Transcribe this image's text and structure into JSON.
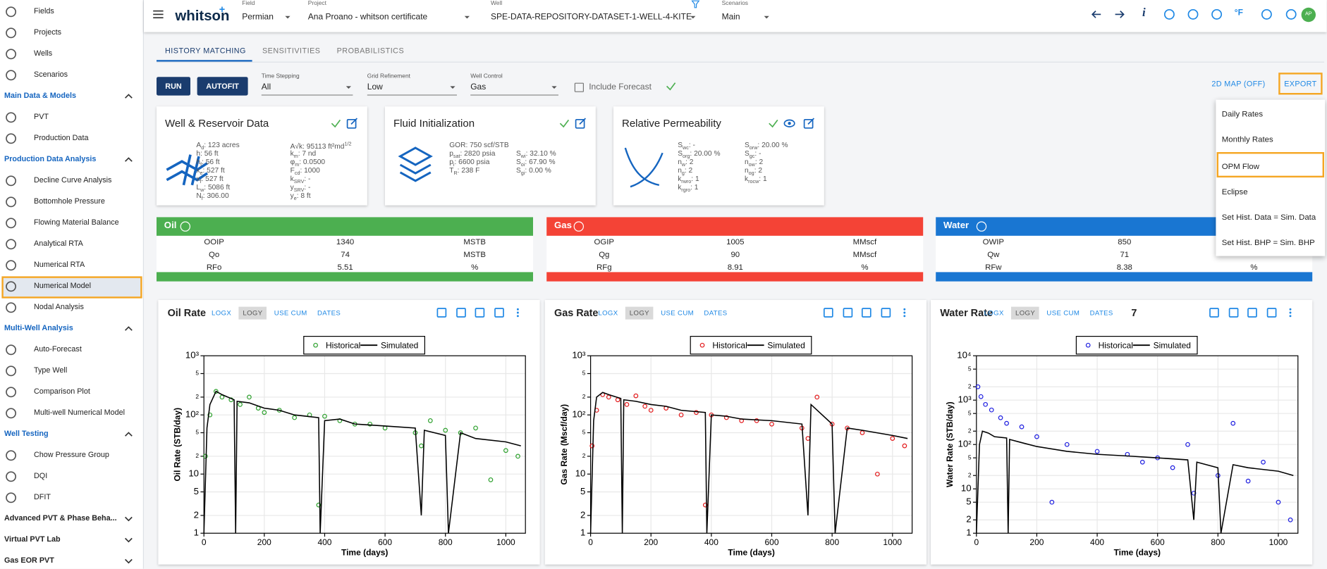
{
  "sidebar": {
    "nav": [
      "Fields",
      "Projects",
      "Wells",
      "Scenarios"
    ],
    "sections": [
      {
        "title": "Main Data & Models",
        "items": [
          "PVT",
          "Production Data"
        ]
      },
      {
        "title": "Production Data Analysis",
        "items": [
          "Decline Curve Analysis",
          "Bottomhole Pressure",
          "Flowing Material Balance",
          "Analytical RTA",
          "Numerical RTA",
          "Numerical Model",
          "Nodal Analysis"
        ]
      },
      {
        "title": "Multi-Well Analysis",
        "items": [
          "Auto-Forecast",
          "Type Well",
          "Comparison Plot",
          "Multi-well Numerical Model"
        ]
      },
      {
        "title": "Well Testing",
        "items": [
          "Chow Pressure Group",
          "DQI",
          "DFIT"
        ]
      },
      {
        "title": "Advanced PVT & Phase Beha...",
        "items": []
      },
      {
        "title": "Virtual PVT Lab",
        "items": []
      },
      {
        "title": "Gas EOR PVT",
        "items": []
      }
    ]
  },
  "topbar": {
    "brand": "whitson",
    "brand_sup": "+",
    "selectors": [
      {
        "label": "Field",
        "value": "Permian"
      },
      {
        "label": "Project",
        "value": "Ana Proano - whitson certificate"
      },
      {
        "label": "Well",
        "value": "SPE-DATA-REPOSITORY-DATASET-1-WELL-4-KITE"
      },
      {
        "label": "Scenarios",
        "value": "Main"
      }
    ],
    "info": "i",
    "units": "°F",
    "avatar": "AP"
  },
  "tabs": [
    "HISTORY MATCHING",
    "SENSITIVITIES",
    "PROBABILISTICS"
  ],
  "controls": {
    "buttons": [
      "RUN",
      "AUTOFIT"
    ],
    "dropdowns": [
      {
        "label": "Time Stepping",
        "value": "All"
      },
      {
        "label": "Grid Refinement",
        "value": "Low"
      },
      {
        "label": "Well Control",
        "value": "Gas"
      }
    ],
    "checkbox": "Include Forecast",
    "map": "2D MAP (OFF)",
    "export": "EXPORT"
  },
  "cards": [
    {
      "title": "Well & Reservoir Data",
      "columns": [
        [
          {
            "s": "A",
            "sub": "d",
            "v": ":  123 acres"
          },
          {
            "s": "h",
            "v": ":  56 ft"
          },
          {
            "s": "h",
            "sub": "f",
            "v": ":  56 ft"
          },
          {
            "s": "x",
            "sub": "e",
            "v": ":  527 ft"
          },
          {
            "s": "x",
            "sub": "f",
            "v": ":  527 ft"
          },
          {
            "s": "L",
            "sub": "w",
            "v": ":  5086 ft"
          },
          {
            "s": "N",
            "sub": "f",
            "v": ":  306.00"
          }
        ],
        [
          {
            "s": "A√k",
            "v": ":  95113 ft²md",
            "sup": "1/2"
          },
          {
            "s": "k",
            "sub": "m",
            "v": ":  7 nd"
          },
          {
            "s": "φ",
            "sub": "m",
            "v": ":  0.0500"
          },
          {
            "s": "F",
            "sub": "cd",
            "v": ":  1000"
          },
          {
            "s": "k",
            "sub": "SRV",
            "v": ":  -"
          },
          {
            "s": "y",
            "sub": "SRV",
            "v": ":  -"
          },
          {
            "s": "y",
            "sub": "e",
            "v": ":  8 ft"
          }
        ]
      ]
    },
    {
      "title": "Fluid Initialization",
      "columns": [
        [
          {
            "s": "GOR",
            "v": ":  750 scf/STB"
          },
          {
            "s": "p",
            "sub": "sat",
            "v": ":  2820 psia"
          },
          {
            "s": "p",
            "sub": "i",
            "v": ":  6600 psia"
          },
          {
            "s": "T",
            "sub": "R",
            "v": ":  238 F"
          }
        ],
        [
          {
            "s": "S",
            "sub": "wi",
            "v": ":  32.10 %"
          },
          {
            "s": "S",
            "sub": "oi",
            "v": ":  67.90 %"
          },
          {
            "s": "S",
            "sub": "gi",
            "v": ":  0.00 %"
          }
        ]
      ]
    },
    {
      "title": "Relative Permeability",
      "columns": [
        [
          {
            "s": "S",
            "sub": "wc",
            "v": ":  -"
          },
          {
            "s": "S",
            "sub": "org",
            "v": ":  20.00 %"
          },
          {
            "s": "n",
            "sub": "w",
            "v": ":  2"
          },
          {
            "s": "n",
            "sub": "g",
            "v": ":  2"
          },
          {
            "s": "k",
            "sub": "rwro",
            "v": ":  1"
          },
          {
            "s": "k",
            "sub": "rgro",
            "v": ":  1"
          }
        ],
        [
          {
            "s": "S",
            "sub": "orw",
            "v": ":  20.00 %"
          },
          {
            "s": "S",
            "sub": "gc",
            "v": ":  -"
          },
          {
            "s": "n",
            "sub": "ow",
            "v": ":  2"
          },
          {
            "s": "n",
            "sub": "og",
            "v": ":  2"
          },
          {
            "s": "k",
            "sub": "rocw",
            "v": ":  1"
          }
        ]
      ]
    }
  ],
  "summary": [
    {
      "phase": "Oil",
      "color": "#4caf50",
      "rows": [
        [
          "OOIP",
          1340,
          "MSTB"
        ],
        [
          "Qo",
          74,
          "MSTB"
        ],
        [
          "RFo",
          5.51,
          "%"
        ]
      ]
    },
    {
      "phase": "Gas",
      "color": "#f44336",
      "rows": [
        [
          "OGIP",
          1005,
          "MMscf"
        ],
        [
          "Qg",
          90,
          "MMscf"
        ],
        [
          "RFg",
          8.91,
          "%"
        ]
      ]
    },
    {
      "phase": "Water",
      "color": "#1976d2",
      "rows": [
        [
          "OWIP",
          850
        ],
        [
          "Qw",
          71
        ],
        [
          "RFw",
          8.38,
          "%"
        ]
      ]
    }
  ],
  "export_menu": [
    "Daily Rates",
    "Monthly Rates",
    "OPM Flow",
    "Eclipse",
    "Set Hist. Data = Sim. Data",
    "Set Hist. BHP = Sim. BHP"
  ],
  "chart_data": [
    {
      "type": "line",
      "title": "Oil Rate",
      "toolbar": [
        "LOGX",
        "LOGY",
        "USE CUM",
        "DATES"
      ],
      "x_label": "Time (days)",
      "y_label": "Oil Rate (STB/day)",
      "log_y": true,
      "grid": true,
      "xlim": [
        0,
        1065
      ],
      "xticks": [
        0,
        200,
        400,
        600,
        800,
        1000
      ],
      "ylim": [
        1,
        1000
      ],
      "yticks": [
        1,
        2,
        5,
        10,
        {
          "value": 20,
          "label": "2"
        },
        {
          "value": 50,
          "label": "5"
        },
        {
          "value": 100,
          "label": "10²"
        },
        {
          "value": 200,
          "label": "2"
        },
        {
          "value": 500,
          "label": "5"
        },
        {
          "value": 1000,
          "label": "10³"
        }
      ],
      "series": [
        {
          "name": "Historical",
          "color": "#2ca02c",
          "mode": "markers",
          "x": [
            5,
            20,
            40,
            60,
            90,
            120,
            150,
            180,
            200,
            250,
            300,
            350,
            380,
            400,
            450,
            500,
            550,
            600,
            700,
            720,
            750,
            800,
            850,
            900,
            950,
            1000,
            1040
          ],
          "values": [
            20,
            100,
            250,
            200,
            180,
            150,
            200,
            130,
            110,
            120,
            90,
            100,
            3,
            95,
            80,
            70,
            70,
            60,
            50,
            30,
            80,
            55,
            50,
            60,
            8,
            25,
            20
          ]
        },
        {
          "name": "Simulated",
          "color": "#000000",
          "mode": "lines",
          "x": [
            0,
            10,
            20,
            40,
            60,
            100,
            105,
            110,
            150,
            200,
            250,
            300,
            380,
            385,
            400,
            450,
            500,
            600,
            700,
            720,
            730,
            800,
            810,
            850,
            900,
            1000,
            1050
          ],
          "values": [
            1,
            60,
            150,
            250,
            220,
            180,
            1,
            170,
            160,
            130,
            120,
            100,
            90,
            1,
            80,
            85,
            70,
            65,
            60,
            2,
            55,
            45,
            1,
            50,
            40,
            35,
            30
          ]
        }
      ]
    },
    {
      "type": "line",
      "title": "Gas Rate",
      "toolbar": [
        "LOGX",
        "LOGY",
        "USE CUM",
        "DATES"
      ],
      "x_label": "Time (days)",
      "y_label": "Gas Rate (Mscf/day)",
      "log_y": true,
      "grid": true,
      "xlim": [
        0,
        1065
      ],
      "xticks": [
        0,
        200,
        400,
        600,
        800,
        1000
      ],
      "ylim": [
        1,
        1000
      ],
      "yticks": [
        1,
        2,
        5,
        10,
        {
          "value": 20,
          "label": "2"
        },
        {
          "value": 50,
          "label": "5"
        },
        {
          "value": 100,
          "label": "10²"
        },
        {
          "value": 200,
          "label": "2"
        },
        {
          "value": 500,
          "label": "5"
        },
        {
          "value": 1000,
          "label": "10³"
        }
      ],
      "series": [
        {
          "name": "Historical",
          "color": "#e31a1c",
          "mode": "markers",
          "x": [
            5,
            20,
            40,
            60,
            90,
            120,
            150,
            180,
            200,
            250,
            300,
            350,
            380,
            400,
            450,
            500,
            550,
            600,
            700,
            720,
            750,
            800,
            850,
            900,
            950,
            1000,
            1040
          ],
          "values": [
            30,
            120,
            220,
            200,
            180,
            150,
            210,
            140,
            120,
            130,
            100,
            110,
            3,
            100,
            90,
            80,
            80,
            70,
            60,
            40,
            200,
            70,
            60,
            50,
            10,
            40,
            30
          ]
        },
        {
          "name": "Simulated",
          "color": "#000000",
          "mode": "lines",
          "x": [
            0,
            10,
            20,
            40,
            60,
            100,
            105,
            110,
            150,
            200,
            250,
            300,
            380,
            385,
            400,
            450,
            500,
            600,
            700,
            720,
            730,
            800,
            810,
            850,
            900,
            1000,
            1050
          ],
          "values": [
            1,
            80,
            200,
            240,
            220,
            190,
            1,
            180,
            170,
            150,
            140,
            120,
            110,
            1,
            100,
            95,
            85,
            80,
            70,
            2,
            150,
            70,
            1,
            60,
            55,
            45,
            40
          ]
        }
      ]
    },
    {
      "type": "line",
      "title": "Water Rate",
      "toolbar": [
        "LOGX",
        "LOGY",
        "USE CUM",
        "DATES",
        "7"
      ],
      "x_label": "Time (days)",
      "y_label": "Water Rate (STB/day)",
      "log_y": true,
      "grid": true,
      "xlim": [
        0,
        1065
      ],
      "xticks": [
        0,
        200,
        400,
        600,
        800,
        1000
      ],
      "ylim": [
        1,
        10000
      ],
      "yticks": [
        1,
        2,
        5,
        10,
        {
          "value": 20,
          "label": "2"
        },
        {
          "value": 50,
          "label": "5"
        },
        {
          "value": 100,
          "label": "10²"
        },
        {
          "value": 200,
          "label": "2"
        },
        {
          "value": 500,
          "label": "5"
        },
        {
          "value": 1000,
          "label": "10³"
        },
        {
          "value": 2000,
          "label": "2"
        },
        {
          "value": 5000,
          "label": "5"
        },
        {
          "value": 10000,
          "label": "10⁴"
        }
      ],
      "series": [
        {
          "name": "Historical",
          "color": "#1f1fe0",
          "mode": "markers",
          "x": [
            5,
            15,
            30,
            50,
            80,
            100,
            150,
            200,
            250,
            300,
            400,
            500,
            550,
            600,
            650,
            700,
            720,
            800,
            850,
            900,
            950,
            1000,
            1040
          ],
          "values": [
            2000,
            1200,
            800,
            600,
            400,
            300,
            250,
            150,
            5,
            100,
            70,
            60,
            40,
            50,
            30,
            100,
            8,
            20,
            300,
            15,
            40,
            5,
            2
          ]
        },
        {
          "name": "Simulated",
          "color": "#000000",
          "mode": "lines",
          "x": [
            0,
            10,
            20,
            40,
            60,
            100,
            105,
            110,
            150,
            200,
            300,
            400,
            500,
            600,
            700,
            720,
            730,
            800,
            810,
            850,
            900,
            1000,
            1050
          ],
          "values": [
            1,
            100,
            200,
            180,
            150,
            140,
            1,
            130,
            110,
            90,
            70,
            60,
            55,
            50,
            45,
            2,
            40,
            30,
            1,
            35,
            30,
            25,
            20
          ]
        }
      ]
    }
  ]
}
